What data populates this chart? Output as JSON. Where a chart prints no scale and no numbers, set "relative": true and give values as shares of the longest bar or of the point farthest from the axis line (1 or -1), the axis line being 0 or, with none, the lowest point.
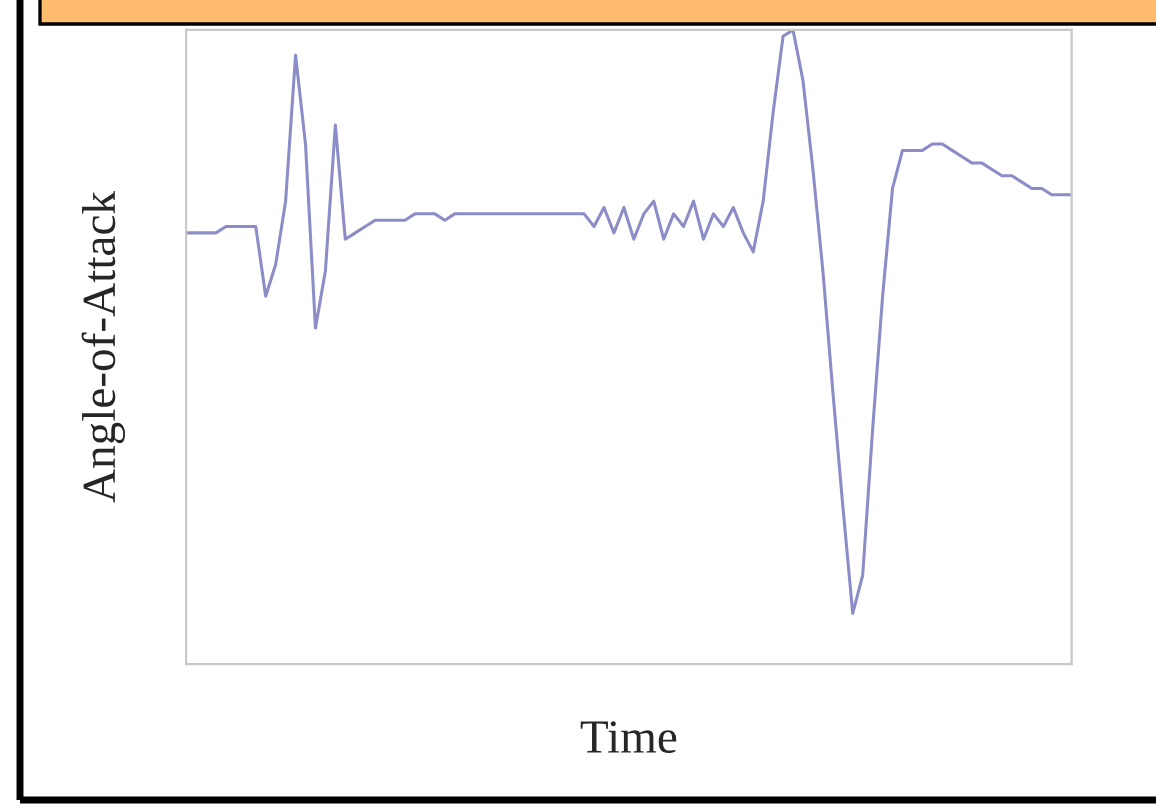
{
  "chart_data": {
    "type": "line",
    "xlabel": "Time",
    "ylabel": "Angle-of-Attack",
    "relative": true,
    "categories": [
      null,
      null,
      null,
      null,
      null,
      null,
      null,
      null,
      null,
      null,
      null,
      null,
      null,
      null,
      null,
      null,
      null,
      null,
      null,
      null,
      null,
      null,
      null,
      null,
      null,
      null,
      null,
      null,
      null,
      null,
      null,
      null,
      null,
      null,
      null,
      null,
      null,
      null,
      null,
      null,
      null,
      null,
      null,
      null,
      null,
      null,
      null,
      null,
      null,
      null,
      null,
      null,
      null,
      null,
      null,
      null,
      null,
      null,
      null,
      null,
      null,
      null,
      null,
      null,
      null,
      null,
      null,
      null,
      null,
      null,
      null,
      null,
      null,
      null,
      null,
      null,
      null,
      null,
      null,
      null,
      null,
      null,
      null,
      null,
      null,
      null,
      null,
      null,
      null,
      null
    ],
    "series": [
      {
        "color": "#8c8cc8",
        "values": [
          0.68,
          0.68,
          0.68,
          0.68,
          0.69,
          0.69,
          0.69,
          0.69,
          0.58,
          0.63,
          0.73,
          0.96,
          0.82,
          0.53,
          0.62,
          0.85,
          0.67,
          0.68,
          0.69,
          0.7,
          0.7,
          0.7,
          0.7,
          0.71,
          0.71,
          0.71,
          0.7,
          0.71,
          0.71,
          0.71,
          0.71,
          0.71,
          0.71,
          0.71,
          0.71,
          0.71,
          0.71,
          0.71,
          0.71,
          0.71,
          0.71,
          0.69,
          0.72,
          0.68,
          0.72,
          0.67,
          0.71,
          0.73,
          0.67,
          0.71,
          0.69,
          0.73,
          0.67,
          0.71,
          0.69,
          0.72,
          0.68,
          0.65,
          0.73,
          0.87,
          0.99,
          1.0,
          0.92,
          0.78,
          0.62,
          0.43,
          0.25,
          0.08,
          0.14,
          0.37,
          0.58,
          0.75,
          0.81,
          0.81,
          0.81,
          0.82,
          0.82,
          0.81,
          0.8,
          0.79,
          0.79,
          0.78,
          0.77,
          0.77,
          0.76,
          0.75,
          0.75,
          0.74,
          0.74,
          0.74
        ]
      }
    ],
    "marker": "none",
    "line_style": "solid"
  }
}
